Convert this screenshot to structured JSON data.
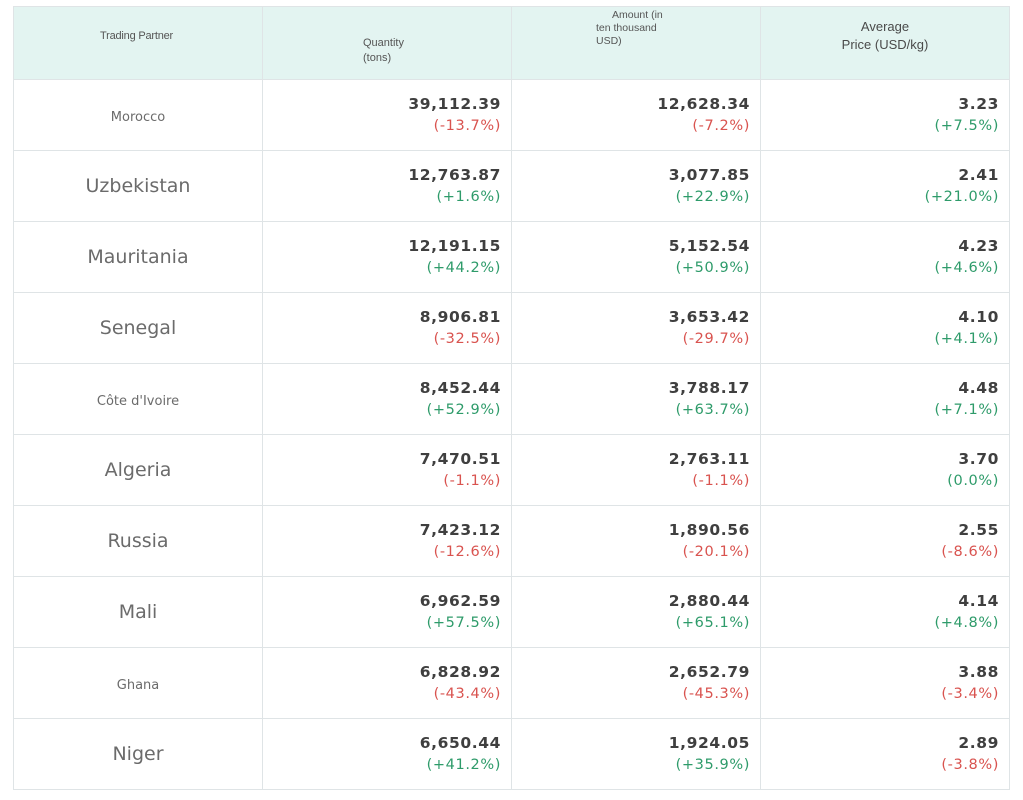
{
  "header": {
    "partner": "Trading Partner",
    "quantity_line1": "Quantity",
    "quantity_line2": "(tons)",
    "amount_line1": "Amount (in",
    "amount_line2": "ten thousand",
    "amount_line3": "USD)",
    "price_line1": "Average",
    "price_line2": "Price (USD/kg)"
  },
  "colors": {
    "header_bg": "#e3f4f1",
    "negative": "#d9534f",
    "positive": "#2e9b6a"
  },
  "rows": [
    {
      "partner": "Morocco",
      "qty": "39,112.39",
      "qty_chg": "(-13.7%)",
      "amt": "12,628.34",
      "amt_chg": "(-7.2%)",
      "price": "3.23",
      "price_chg": "(+7.5%)"
    },
    {
      "partner": "Uzbekistan",
      "qty": "12,763.87",
      "qty_chg": "(+1.6%)",
      "amt": "3,077.85",
      "amt_chg": "(+22.9%)",
      "price": "2.41",
      "price_chg": "(+21.0%)"
    },
    {
      "partner": "Mauritania",
      "qty": "12,191.15",
      "qty_chg": "(+44.2%)",
      "amt": "5,152.54",
      "amt_chg": "(+50.9%)",
      "price": "4.23",
      "price_chg": "(+4.6%)"
    },
    {
      "partner": "Senegal",
      "qty": "8,906.81",
      "qty_chg": "(-32.5%)",
      "amt": "3,653.42",
      "amt_chg": "(-29.7%)",
      "price": "4.10",
      "price_chg": "(+4.1%)"
    },
    {
      "partner": "Côte d'Ivoire",
      "qty": "8,452.44",
      "qty_chg": "(+52.9%)",
      "amt": "3,788.17",
      "amt_chg": "(+63.7%)",
      "price": "4.48",
      "price_chg": "(+7.1%)"
    },
    {
      "partner": "Algeria",
      "qty": "7,470.51",
      "qty_chg": "(-1.1%)",
      "amt": "2,763.11",
      "amt_chg": "(-1.1%)",
      "price": "3.70",
      "price_chg": "(0.0%)"
    },
    {
      "partner": "Russia",
      "qty": "7,423.12",
      "qty_chg": "(-12.6%)",
      "amt": "1,890.56",
      "amt_chg": "(-20.1%)",
      "price": "2.55",
      "price_chg": "(-8.6%)"
    },
    {
      "partner": "Mali",
      "qty": "6,962.59",
      "qty_chg": "(+57.5%)",
      "amt": "2,880.44",
      "amt_chg": "(+65.1%)",
      "price": "4.14",
      "price_chg": "(+4.8%)"
    },
    {
      "partner": "Ghana",
      "qty": "6,828.92",
      "qty_chg": "(-43.4%)",
      "amt": "2,652.79",
      "amt_chg": "(-45.3%)",
      "price": "3.88",
      "price_chg": "(-3.4%)"
    },
    {
      "partner": "Niger",
      "qty": "6,650.44",
      "qty_chg": "(+41.2%)",
      "amt": "1,924.05",
      "amt_chg": "(+35.9%)",
      "price": "2.89",
      "price_chg": "(-3.8%)"
    }
  ]
}
